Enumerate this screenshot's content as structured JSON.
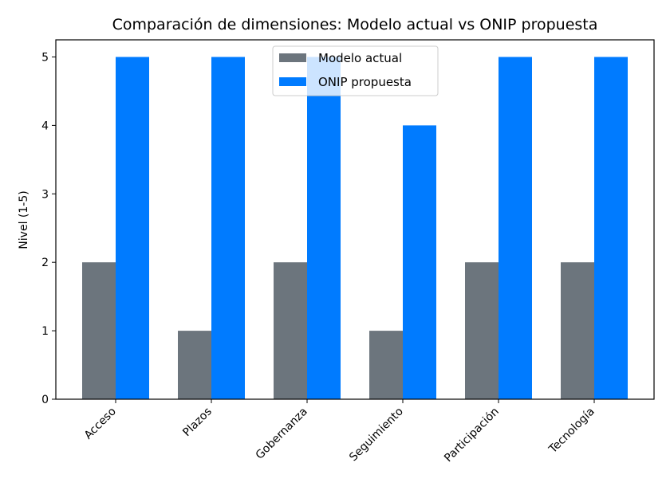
{
  "chart_data": {
    "type": "bar",
    "title": "Comparación de dimensiones: Modelo actual vs ONIP propuesta",
    "xlabel": "",
    "ylabel": "Nivel (1-5)",
    "categories": [
      "Acceso",
      "Plazos",
      "Gobernanza",
      "Seguimiento",
      "Participación",
      "Tecnología"
    ],
    "series": [
      {
        "name": "Modelo actual",
        "color": "#6c757d",
        "values": [
          2,
          1,
          2,
          1,
          2,
          2
        ]
      },
      {
        "name": "ONIP propuesta",
        "color": "#007bff",
        "values": [
          5,
          5,
          5,
          4,
          5,
          5
        ]
      }
    ],
    "ylim": [
      0,
      5.25
    ],
    "yticks": [
      "0",
      "1",
      "2",
      "3",
      "4",
      "5"
    ],
    "grid": false,
    "legend": {
      "position": "top-center"
    },
    "xtick_rotation_deg": 45
  }
}
